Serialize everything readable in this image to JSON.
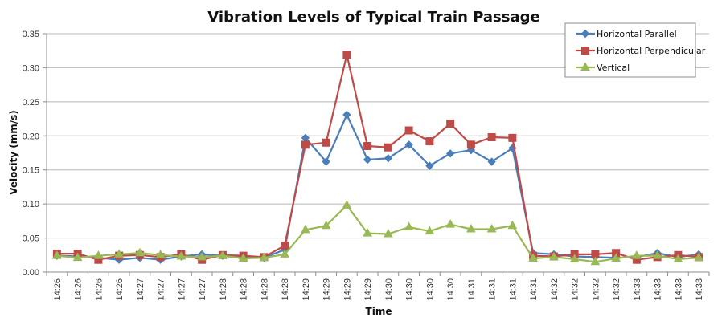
{
  "chart_data": {
    "type": "line",
    "title": "Vibration Levels of Typical Train Passage",
    "xlabel": "Time",
    "ylabel": "Velocity (mm/s)",
    "ylim": [
      0,
      0.35
    ],
    "yticks": [
      "0.00",
      "0.05",
      "0.10",
      "0.15",
      "0.20",
      "0.25",
      "0.30",
      "0.35"
    ],
    "ytick_values": [
      0,
      0.05,
      0.1,
      0.15,
      0.2,
      0.25,
      0.3,
      0.35
    ],
    "grid": true,
    "legend_position": "top-right",
    "categories": [
      "14:26",
      "14:26",
      "14:26",
      "14:26",
      "14:27",
      "14:27",
      "14:27",
      "14:27",
      "14:28",
      "14:28",
      "14:28",
      "14:28",
      "14:29",
      "14:29",
      "14:29",
      "14:29",
      "14:30",
      "14:30",
      "14:30",
      "14:30",
      "14:31",
      "14:31",
      "14:31",
      "14:31",
      "14:32",
      "14:32",
      "14:32",
      "14:32",
      "14:33",
      "14:33",
      "14:33",
      "14:33"
    ],
    "series": [
      {
        "name": "Horizontal Parallel",
        "color": "#4a7ebb",
        "marker": "diamond",
        "values": [
          0.024,
          0.023,
          0.021,
          0.018,
          0.021,
          0.018,
          0.023,
          0.026,
          0.024,
          0.021,
          0.021,
          0.033,
          0.197,
          0.162,
          0.231,
          0.165,
          0.167,
          0.187,
          0.156,
          0.174,
          0.179,
          0.162,
          0.182,
          0.028,
          0.026,
          0.023,
          0.022,
          0.021,
          0.022,
          0.028,
          0.022,
          0.026
        ]
      },
      {
        "name": "Horizontal Perpendicular",
        "color": "#be4b48",
        "marker": "square",
        "values": [
          0.027,
          0.027,
          0.018,
          0.024,
          0.025,
          0.022,
          0.026,
          0.018,
          0.025,
          0.024,
          0.022,
          0.039,
          0.187,
          0.19,
          0.319,
          0.185,
          0.183,
          0.208,
          0.192,
          0.218,
          0.187,
          0.198,
          0.197,
          0.024,
          0.023,
          0.026,
          0.026,
          0.028,
          0.018,
          0.022,
          0.025,
          0.022
        ]
      },
      {
        "name": "Vertical",
        "color": "#98b954",
        "marker": "triangle",
        "values": [
          0.024,
          0.021,
          0.024,
          0.026,
          0.028,
          0.025,
          0.023,
          0.022,
          0.024,
          0.02,
          0.021,
          0.026,
          0.062,
          0.068,
          0.098,
          0.057,
          0.056,
          0.066,
          0.06,
          0.07,
          0.063,
          0.063,
          0.068,
          0.02,
          0.022,
          0.019,
          0.015,
          0.02,
          0.024,
          0.024,
          0.019,
          0.021
        ]
      }
    ]
  }
}
